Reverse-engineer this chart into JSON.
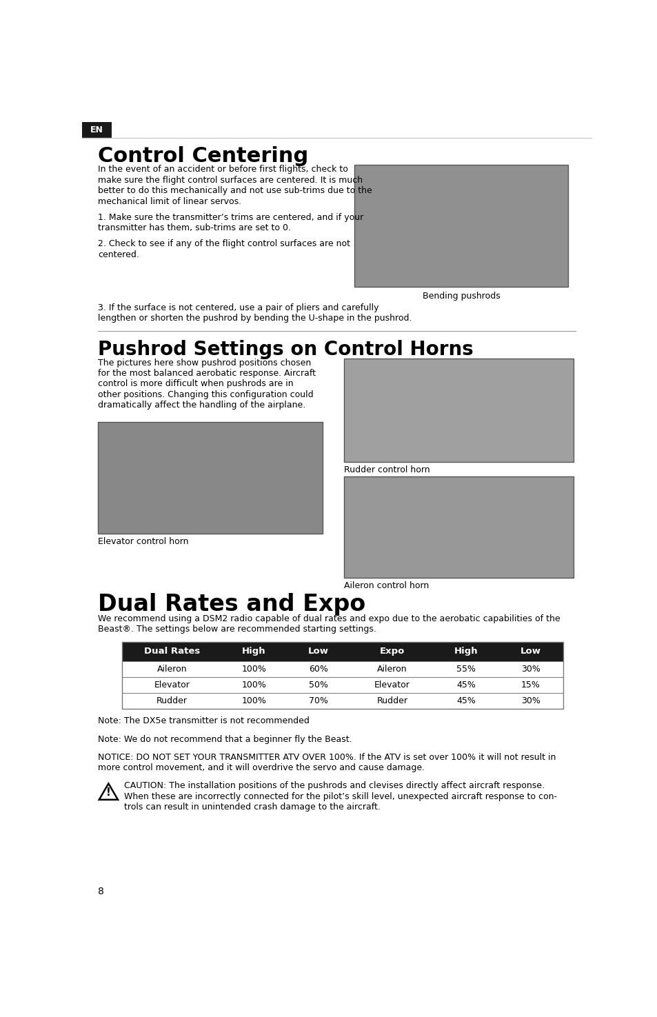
{
  "page_bg": "#ffffff",
  "en_tab_bg": "#1a1a1a",
  "en_tab_text": "EN",
  "en_tab_text_color": "#ffffff",
  "section1_title": "Control Centering",
  "section2_title": "Pushrod Settings on Control Horns",
  "section3_title": "Dual Rates and Expo",
  "s1_para1_lines": [
    "In the event of an accident or before first flights, check to",
    "make sure the flight control surfaces are centered. It is much",
    "better to do this mechanically and not use sub-trims due to the",
    "mechanical limit of linear servos."
  ],
  "s1_para2_lines": [
    "1. Make sure the transmitter’s trims are centered, and if your",
    "transmitter has them, sub-trims are set to 0."
  ],
  "s1_para3_lines": [
    "2. Check to see if any of the flight control surfaces are not",
    "centered."
  ],
  "s1_para4_lines": [
    "3. If the surface is not centered, use a pair of pliers and carefully",
    "lengthen or shorten the pushrod by bending the U-shape in the pushrod."
  ],
  "img1_caption": "Bending pushrods",
  "s2_body_lines": [
    "The pictures here show pushrod positions chosen",
    "for the most balanced aerobatic response. Aircraft",
    "control is more difficult when pushrods are in",
    "other positions. Changing this configuration could",
    "dramatically affect the handling of the airplane."
  ],
  "img2_caption": "Rudder control horn",
  "img3_caption": "Elevator control horn",
  "img4_caption": "Aileron control horn",
  "section3_intro_lines": [
    "We recommend using a DSM2 radio capable of dual rates and expo due to the aerobatic capabilities of the",
    "Beast®. The settings below are recommended starting settings."
  ],
  "table_header": [
    "Dual Rates",
    "High",
    "Low",
    "Expo",
    "High",
    "Low"
  ],
  "table_rows": [
    [
      "Aileron",
      "100%",
      "60%",
      "Aileron",
      "55%",
      "30%"
    ],
    [
      "Elevator",
      "100%",
      "50%",
      "Elevator",
      "45%",
      "15%"
    ],
    [
      "Rudder",
      "100%",
      "70%",
      "Rudder",
      "45%",
      "30%"
    ]
  ],
  "table_header_bg": "#1a1a1a",
  "table_header_fg": "#ffffff",
  "table_border": "#777777",
  "note1": "Note: The DX5e transmitter is not recommended",
  "note2": "Note: We do not recommend that a beginner fly the Beast.",
  "notice_lines": [
    "NOTICE: DO NOT SET YOUR TRANSMITTER ATV OVER 100%. If the ATV is set over 100% it will not result in",
    "more control movement, and it will overdrive the servo and cause damage."
  ],
  "caution_lines": [
    "CAUTION: The installation positions of the pushrods and clevises directly affect aircraft response.",
    "When these are incorrectly connected for the pilot’s skill level, unexpected aircraft response to con-",
    "trols can result in unintended crash damage to the aircraft."
  ],
  "page_number": "8",
  "img_gray1": "#909090",
  "img_gray2": "#a0a0a0",
  "img_gray3": "#888888",
  "img_gray4": "#989898"
}
